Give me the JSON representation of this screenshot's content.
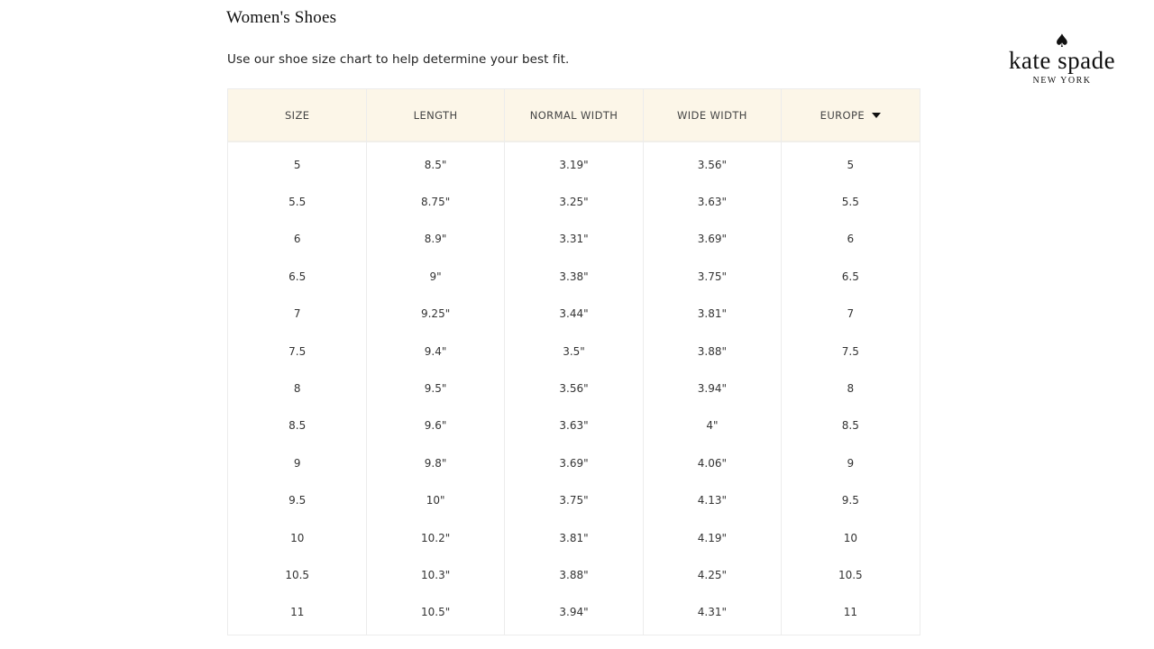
{
  "page": {
    "title": "Women's Shoes",
    "subtitle": "Use our shoe size chart to help determine your best fit."
  },
  "logo": {
    "brand": "kate spade",
    "tagline": "NEW YORK",
    "icon": "spade-icon"
  },
  "table": {
    "headers": [
      "SIZE",
      "LENGTH",
      "NORMAL WIDTH",
      "WIDE WIDTH",
      "EUROPE"
    ],
    "region_dropdown_icon": "caret-down-icon",
    "header_bg": "#fcf6e8",
    "rows": [
      [
        "5",
        "8.5\"",
        "3.19\"",
        "3.56\"",
        "5"
      ],
      [
        "5.5",
        "8.75\"",
        "3.25\"",
        "3.63\"",
        "5.5"
      ],
      [
        "6",
        "8.9\"",
        "3.31\"",
        "3.69\"",
        "6"
      ],
      [
        "6.5",
        "9\"",
        "3.38\"",
        "3.75\"",
        "6.5"
      ],
      [
        "7",
        "9.25\"",
        "3.44\"",
        "3.81\"",
        "7"
      ],
      [
        "7.5",
        "9.4\"",
        "3.5\"",
        "3.88\"",
        "7.5"
      ],
      [
        "8",
        "9.5\"",
        "3.56\"",
        "3.94\"",
        "8"
      ],
      [
        "8.5",
        "9.6\"",
        "3.63\"",
        "4\"",
        "8.5"
      ],
      [
        "9",
        "9.8\"",
        "3.69\"",
        "4.06\"",
        "9"
      ],
      [
        "9.5",
        "10\"",
        "3.75\"",
        "4.13\"",
        "9.5"
      ],
      [
        "10",
        "10.2\"",
        "3.81\"",
        "4.19\"",
        "10"
      ],
      [
        "10.5",
        "10.3\"",
        "3.88\"",
        "4.25\"",
        "10.5"
      ],
      [
        "11",
        "10.5\"",
        "3.94\"",
        "4.31\"",
        "11"
      ]
    ]
  }
}
